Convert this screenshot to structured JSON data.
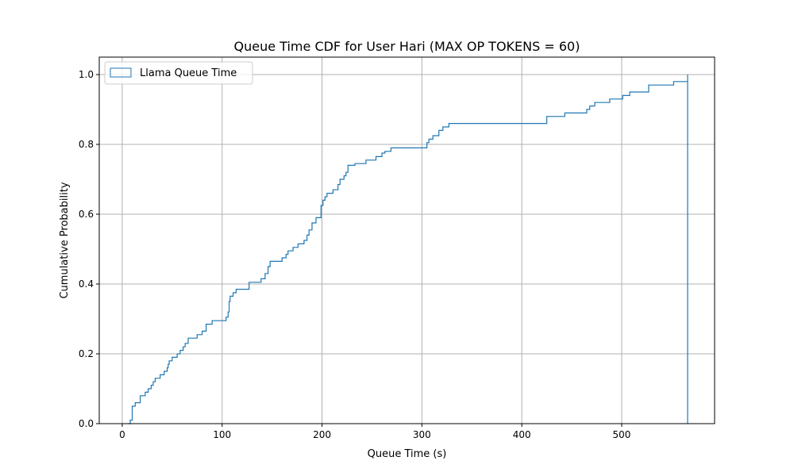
{
  "chart_data": {
    "type": "line",
    "style": "step",
    "title": "Queue Time CDF for User Hari (MAX OP TOKENS = 60)",
    "xlabel": "Queue Time (s)",
    "ylabel": "Cumulative Probability",
    "xlim": [
      -23,
      593
    ],
    "ylim": [
      0,
      1.05
    ],
    "xticks": [
      0,
      100,
      200,
      300,
      400,
      500
    ],
    "yticks": [
      0.0,
      0.2,
      0.4,
      0.6,
      0.8,
      1.0
    ],
    "xtick_labels": [
      "0",
      "100",
      "200",
      "300",
      "400",
      "500"
    ],
    "ytick_labels": [
      "0.0",
      "0.2",
      "0.4",
      "0.6",
      "0.8",
      "1.0"
    ],
    "grid": true,
    "legend_position": "top-left",
    "series": [
      {
        "name": "Llama  Queue Time",
        "color": "#1f77b4",
        "x": [
          6,
          8,
          10,
          13,
          18,
          23,
          26,
          29,
          31,
          33,
          38,
          42,
          45,
          46,
          47,
          50,
          55,
          58,
          61,
          63,
          66,
          75,
          80,
          84,
          90,
          94,
          104,
          106,
          107,
          108,
          111,
          114,
          119,
          127,
          139,
          143,
          146,
          148,
          160,
          164,
          166,
          171,
          176,
          182,
          185,
          187,
          190,
          194,
          197,
          199,
          201,
          203,
          205,
          211,
          216,
          218,
          222,
          224,
          226,
          233,
          244,
          254,
          260,
          263,
          269,
          281,
          305,
          307,
          311,
          317,
          321,
          327,
          339,
          400,
          425,
          443,
          465,
          468,
          473,
          488,
          501,
          508,
          527,
          541,
          552,
          564,
          566
        ],
        "y": [
          0.0,
          0.01,
          0.05,
          0.06,
          0.08,
          0.09,
          0.1,
          0.11,
          0.12,
          0.13,
          0.14,
          0.15,
          0.16,
          0.17,
          0.18,
          0.19,
          0.2,
          0.21,
          0.22,
          0.23,
          0.245,
          0.255,
          0.265,
          0.285,
          0.295,
          0.295,
          0.305,
          0.32,
          0.35,
          0.365,
          0.375,
          0.385,
          0.385,
          0.405,
          0.415,
          0.43,
          0.45,
          0.465,
          0.475,
          0.485,
          0.495,
          0.505,
          0.515,
          0.525,
          0.54,
          0.555,
          0.575,
          0.59,
          0.59,
          0.625,
          0.64,
          0.65,
          0.66,
          0.67,
          0.685,
          0.7,
          0.71,
          0.72,
          0.74,
          0.745,
          0.755,
          0.765,
          0.775,
          0.78,
          0.79,
          0.79,
          0.805,
          0.815,
          0.825,
          0.84,
          0.85,
          0.86,
          0.86,
          0.86,
          0.88,
          0.89,
          0.9,
          0.91,
          0.92,
          0.93,
          0.94,
          0.95,
          0.97,
          0.97,
          0.98,
          0.98,
          1.0
        ]
      }
    ]
  }
}
